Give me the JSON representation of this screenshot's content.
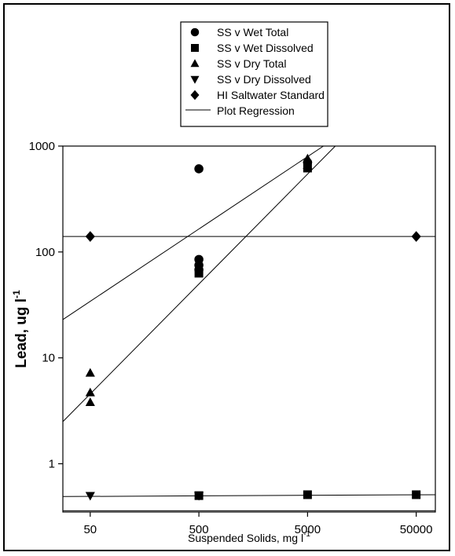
{
  "chart_data": {
    "type": "scatter",
    "xscale": "log",
    "yscale": "log",
    "xlim": [
      28,
      75000
    ],
    "ylim": [
      0.35,
      1000
    ],
    "xticks": [
      50,
      500,
      5000,
      50000
    ],
    "xtick_labels": [
      "50",
      "500",
      "5000",
      "50000"
    ],
    "yticks": [
      1,
      10,
      100,
      1000
    ],
    "ytick_labels": [
      "1",
      "10",
      "100",
      "1000"
    ],
    "ylabel": "Lead, ug l",
    "ylabel_sup": "-1",
    "xlabel": "Suspended Solids, mg l",
    "xlabel_sup": "-1",
    "grid": false,
    "legend_position": "top",
    "series": [
      {
        "name": "SS v Wet Total",
        "marker": "circle",
        "points": [
          [
            500,
            610
          ],
          [
            500,
            85
          ],
          [
            500,
            75
          ],
          [
            500,
            68
          ],
          [
            5000,
            700
          ]
        ]
      },
      {
        "name": "SS v Wet Dissolved",
        "marker": "square",
        "points": [
          [
            500,
            0.5
          ],
          [
            5000,
            0.51
          ],
          [
            50000,
            0.51
          ],
          [
            500,
            63
          ],
          [
            5000,
            620
          ]
        ]
      },
      {
        "name": "SS v Dry Total",
        "marker": "triangle-up",
        "points": [
          [
            50,
            7.2
          ],
          [
            50,
            4.7
          ],
          [
            50,
            3.8
          ],
          [
            5000,
            760
          ],
          [
            5000,
            660
          ]
        ]
      },
      {
        "name": "SS v Dry Dissolved",
        "marker": "triangle-down",
        "points": [
          [
            50,
            0.5
          ],
          [
            500,
            0.5
          ]
        ]
      },
      {
        "name": "HI Saltwater Standard",
        "marker": "diamond",
        "points": [
          [
            50,
            140
          ],
          [
            50000,
            140
          ]
        ]
      }
    ],
    "regression_label": "Plot Regression",
    "lines": [
      {
        "from": [
          28,
          2.5
        ],
        "to": [
          9000,
          1000
        ]
      },
      {
        "from": [
          28,
          23
        ],
        "to": [
          7000,
          1000
        ]
      },
      {
        "from": [
          28,
          140
        ],
        "to": [
          75000,
          140
        ]
      },
      {
        "from": [
          28,
          0.49
        ],
        "to": [
          75000,
          0.51
        ]
      },
      {
        "from": [
          28,
          0.36
        ],
        "to": [
          75000,
          0.36
        ]
      }
    ]
  }
}
